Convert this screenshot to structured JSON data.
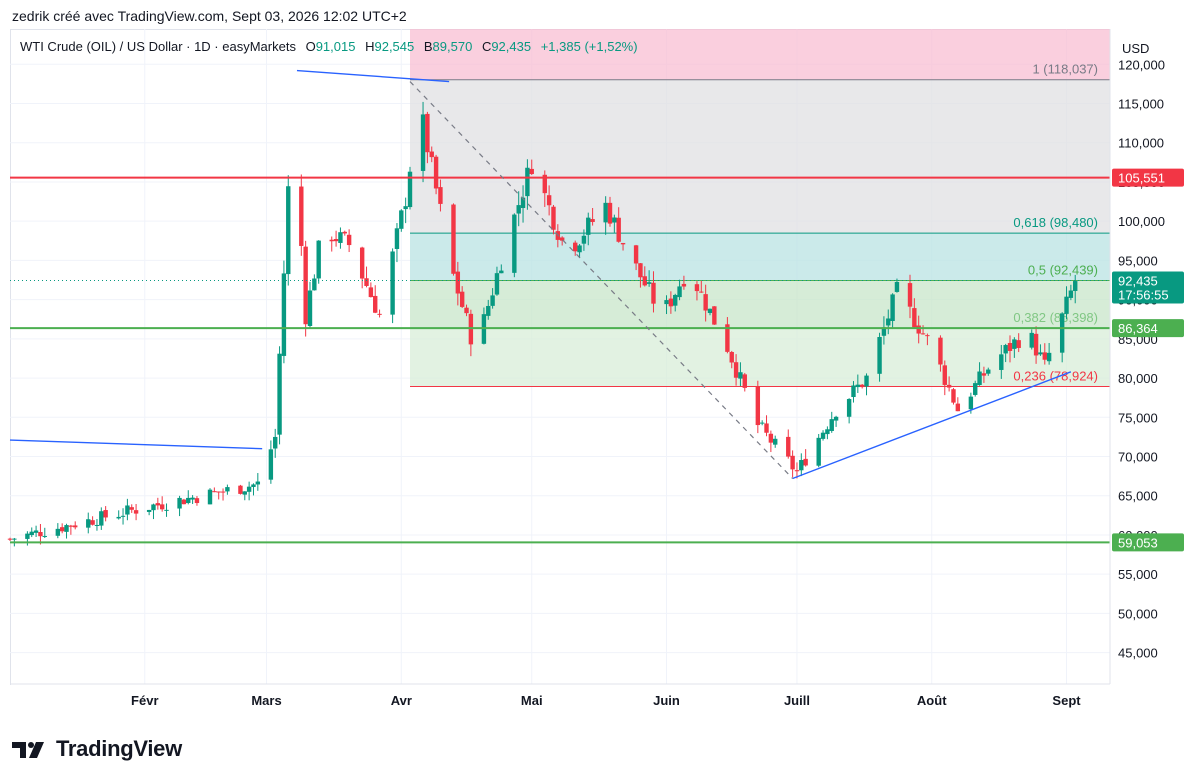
{
  "header": {
    "attribution": "zedrik créé avec TradingView.com, Sept 03, 2026 12:02 UTC+2"
  },
  "symbol": {
    "title": "WTI Crude (OIL) / US Dollar · 1D · easyMarkets",
    "open_label": "O",
    "open": "91,015",
    "high_label": "H",
    "high": "92,545",
    "low_label": "B",
    "low": "89,570",
    "close_label": "C",
    "close": "92,435",
    "change": "+1,385 (+1,52%)"
  },
  "axis": {
    "currency": "USD",
    "y_ticks": [
      "120,000",
      "115,000",
      "110,000",
      "105,000",
      "100,000",
      "95,000",
      "90,000",
      "85,000",
      "80,000",
      "75,000",
      "70,000",
      "65,000",
      "60,000",
      "55,000",
      "50,000",
      "45,000"
    ],
    "x_ticks": [
      "Févr",
      "Mars",
      "Avr",
      "Mai",
      "Juin",
      "Juill",
      "Août",
      "Sept"
    ]
  },
  "price_labels": {
    "resistance": "105,551",
    "current_price": "92,435",
    "countdown": "17:56:55",
    "support_mid": "86,364",
    "support_low": "59,053"
  },
  "fib_labels": {
    "f1": "1 (118,037)",
    "f0618": "0,618 (98,480)",
    "f05": "0,5 (92,439)",
    "f0382": "0,382 (86,398)",
    "f0236": "0,236 (78,924)"
  },
  "brand": {
    "name": "TradingView"
  },
  "colors": {
    "up": "#089981",
    "down": "#f23645",
    "trend": "#2962ff",
    "support": "#4caf50",
    "resistance": "#f23645"
  },
  "chart_data": {
    "type": "candlestick",
    "title": "WTI Crude (OIL) / US Dollar · 1D · easyMarkets",
    "ylim": [
      41000,
      124500
    ],
    "x_domain": [
      "2026-01-01",
      "2026-09-11"
    ],
    "horizontal_levels": [
      105.551,
      86.364,
      59.053
    ],
    "fibonacci": {
      "levels": [
        {
          "ratio": "1",
          "price": 118.037
        },
        {
          "ratio": "0,618",
          "price": 98.48
        },
        {
          "ratio": "0,5",
          "price": 92.439
        },
        {
          "ratio": "0,382",
          "price": 86.398
        },
        {
          "ratio": "0,236",
          "price": 78.924
        }
      ],
      "start_date": "2026-04-03",
      "end_date": "2026-09-11"
    },
    "trendlines": [
      {
        "from": [
          "2026-01-01",
          72.1
        ],
        "to": [
          "2026-02-28",
          71.0
        ]
      },
      {
        "from": [
          "2026-03-08",
          119.2
        ],
        "to": [
          "2026-04-12",
          117.8
        ]
      },
      {
        "from": [
          "2026-06-30",
          67.2
        ],
        "to": [
          "2026-09-02",
          80.8
        ]
      },
      {
        "from": [
          "2026-04-03",
          117.8
        ],
        "to": [
          "2026-06-30",
          67.2
        ],
        "style": "dashed"
      }
    ],
    "anchors": [
      {
        "date": "2026-01-01",
        "price": 59.5
      },
      {
        "date": "2026-02-01",
        "price": 63.5
      },
      {
        "date": "2026-02-27",
        "price": 66.5
      },
      {
        "date": "2026-03-03",
        "price": 72.5
      },
      {
        "date": "2026-03-07",
        "price": 114.5
      },
      {
        "date": "2026-03-10",
        "price": 88.0
      },
      {
        "date": "2026-03-14",
        "price": 99.0
      },
      {
        "date": "2026-03-20",
        "price": 97.0
      },
      {
        "date": "2026-03-27",
        "price": 88.0
      },
      {
        "date": "2026-04-02",
        "price": 103.0
      },
      {
        "date": "2026-04-05",
        "price": 115.0
      },
      {
        "date": "2026-04-13",
        "price": 93.0
      },
      {
        "date": "2026-04-18",
        "price": 83.5
      },
      {
        "date": "2026-04-25",
        "price": 97.0
      },
      {
        "date": "2026-05-01",
        "price": 107.5
      },
      {
        "date": "2026-05-09",
        "price": 96.0
      },
      {
        "date": "2026-05-18",
        "price": 102.0
      },
      {
        "date": "2026-05-24",
        "price": 95.0
      },
      {
        "date": "2026-05-31",
        "price": 88.0
      },
      {
        "date": "2026-06-06",
        "price": 94.0
      },
      {
        "date": "2026-06-15",
        "price": 84.0
      },
      {
        "date": "2026-06-22",
        "price": 74.0
      },
      {
        "date": "2026-07-01",
        "price": 68.0
      },
      {
        "date": "2026-07-10",
        "price": 76.0
      },
      {
        "date": "2026-07-17",
        "price": 80.0
      },
      {
        "date": "2026-07-24",
        "price": 91.0
      },
      {
        "date": "2026-08-01",
        "price": 84.0
      },
      {
        "date": "2026-08-07",
        "price": 76.0
      },
      {
        "date": "2026-08-15",
        "price": 82.0
      },
      {
        "date": "2026-08-23",
        "price": 86.0
      },
      {
        "date": "2026-08-27",
        "price": 81.5
      },
      {
        "date": "2026-09-03",
        "price": 92.4
      }
    ]
  }
}
